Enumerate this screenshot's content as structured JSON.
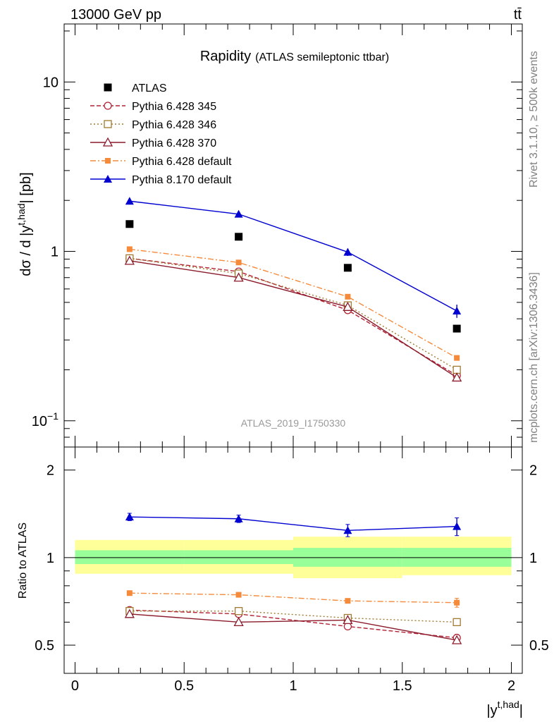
{
  "header": {
    "left": "13000 GeV pp",
    "right": "tt̄"
  },
  "side_text": {
    "rivet": "Rivet 3.1.10, ≥ 500k events",
    "mcplots": "mcplots.cern.ch [arXiv:1306.3436]"
  },
  "plot_title": {
    "main": "Rapidity",
    "sub": "(ATLAS semileptonic ttbar)"
  },
  "watermark": "ATLAS_2019_I1750330",
  "ylabel_main": {
    "prefix": "dσ / d |y",
    "sup": "t,had",
    "suffix": "| [pb]"
  },
  "ylabel_ratio": "Ratio to ATLAS",
  "xlabel": {
    "prefix": "|y",
    "sup": "t,had",
    "suffix": "|"
  },
  "main_ticks": {
    "major": [
      {
        "value": 0.1,
        "base": "10",
        "exp": "−1"
      },
      {
        "value": 1,
        "base": "1",
        "exp": ""
      },
      {
        "value": 10,
        "base": "10",
        "exp": ""
      }
    ]
  },
  "ratio_ticks": [
    "0.5",
    "1",
    "2"
  ],
  "x_ticks": [
    "0",
    "0.5",
    "1",
    "1.5",
    "2"
  ],
  "legend": [
    {
      "label": "ATLAS"
    },
    {
      "label": "Pythia 6.428 345"
    },
    {
      "label": "Pythia 6.428 346"
    },
    {
      "label": "Pythia 6.428 370"
    },
    {
      "label": "Pythia 6.428 default"
    },
    {
      "label": "Pythia 8.170 default"
    }
  ],
  "chart_data": {
    "type": "line",
    "x": [
      0.25,
      0.75,
      1.25,
      1.75
    ],
    "xlim": [
      -0.05,
      2.05
    ],
    "ylim_main": [
      0.07,
      22
    ],
    "yscale_main": "log",
    "ylim_ratio": [
      0.4,
      2.4
    ],
    "yscale_ratio": "log",
    "data": {
      "name": "ATLAS",
      "values": [
        1.45,
        1.22,
        0.8,
        0.35
      ],
      "band_green": [
        [
          0.95,
          1.06
        ],
        [
          0.95,
          1.06
        ],
        [
          0.93,
          1.08
        ],
        [
          0.93,
          1.08
        ]
      ],
      "band_yellow": [
        [
          0.88,
          1.15
        ],
        [
          0.88,
          1.15
        ],
        [
          0.85,
          1.18
        ],
        [
          0.87,
          1.18
        ]
      ]
    },
    "series": [
      {
        "name": "Pythia 6.428 345",
        "color": "#b22234",
        "dash": "6,3",
        "marker": "open-circle",
        "values": [
          0.91,
          0.76,
          0.45,
          0.185
        ],
        "ratio": [
          0.66,
          0.64,
          0.58,
          0.53
        ]
      },
      {
        "name": "Pythia 6.428 346",
        "color": "#a07a30",
        "dash": "2,3",
        "marker": "open-square",
        "values": [
          0.91,
          0.74,
          0.48,
          0.2
        ],
        "ratio": [
          0.655,
          0.655,
          0.62,
          0.6
        ]
      },
      {
        "name": "Pythia 6.428 370",
        "color": "#8b1a2b",
        "dash": "",
        "marker": "open-triangle",
        "values": [
          0.88,
          0.7,
          0.47,
          0.18
        ],
        "ratio": [
          0.64,
          0.6,
          0.61,
          0.52
        ]
      },
      {
        "name": "Pythia 6.428 default",
        "color": "#f58a3a",
        "dash": "8,3,2,3",
        "marker": "filled-square",
        "values": [
          1.03,
          0.86,
          0.54,
          0.235
        ],
        "ratio": [
          0.755,
          0.745,
          0.71,
          0.7
        ],
        "ratio_err": [
          0,
          0,
          0,
          0.025
        ]
      },
      {
        "name": "Pythia 8.170 default",
        "color": "#0000d0",
        "dash": "",
        "marker": "filled-triangle",
        "values": [
          1.98,
          1.66,
          0.99,
          0.445
        ],
        "err": [
          0.02,
          0.04,
          0.05,
          0.04
        ],
        "ratio": [
          1.38,
          1.36,
          1.24,
          1.28
        ],
        "ratio_err": [
          0.04,
          0.04,
          0.06,
          0.09
        ]
      }
    ]
  }
}
